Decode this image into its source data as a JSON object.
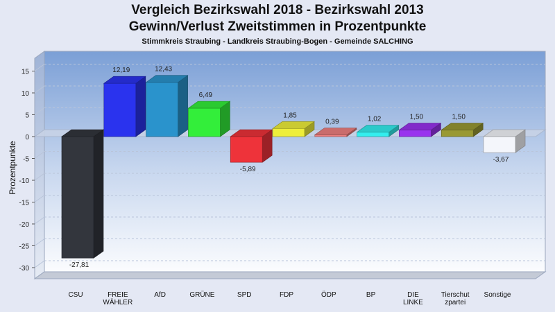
{
  "chart_data": {
    "type": "bar",
    "title": "Vergleich Bezirkswahl 2018 - Bezirkswahl 2013",
    "subtitle": "Gewinn/Verlust Zweitstimmen in Prozentpunkte",
    "subsubtitle": "Stimmkreis Straubing - Landkreis Straubing-Bogen - Gemeinde SALCHING",
    "ylabel": "Prozentpunkte",
    "ylim": [
      -33,
      18
    ],
    "yticks": [
      15,
      10,
      5,
      0,
      -5,
      -10,
      -15,
      -20,
      -25,
      -30
    ],
    "grid": true,
    "categories": [
      [
        "CSU"
      ],
      [
        "FREIE",
        "WÄHLER"
      ],
      [
        "AfD"
      ],
      [
        "GRÜNE"
      ],
      [
        "SPD"
      ],
      [
        "FDP"
      ],
      [
        "ÖDP"
      ],
      [
        "BP"
      ],
      [
        "DIE",
        "LINKE"
      ],
      [
        "Tierschut",
        "zpartei"
      ],
      [
        "Sonstige"
      ]
    ],
    "values": [
      -27.81,
      12.19,
      12.43,
      6.49,
      -5.89,
      1.85,
      0.39,
      1.02,
      1.5,
      1.5,
      -3.67
    ],
    "value_labels": [
      "-27,81",
      "12,19",
      "12,43",
      "6,49",
      "-5,89",
      "1,85",
      "0,39",
      "1,02",
      "1,50",
      "1,50",
      "-3,67"
    ],
    "colors": [
      "#33363d",
      "#2a33ee",
      "#2a93cc",
      "#33ee3a",
      "#ee333a",
      "#eeee3a",
      "#ee7f7f",
      "#33eeee",
      "#9933ee",
      "#999933",
      "#f4f6fb"
    ]
  }
}
